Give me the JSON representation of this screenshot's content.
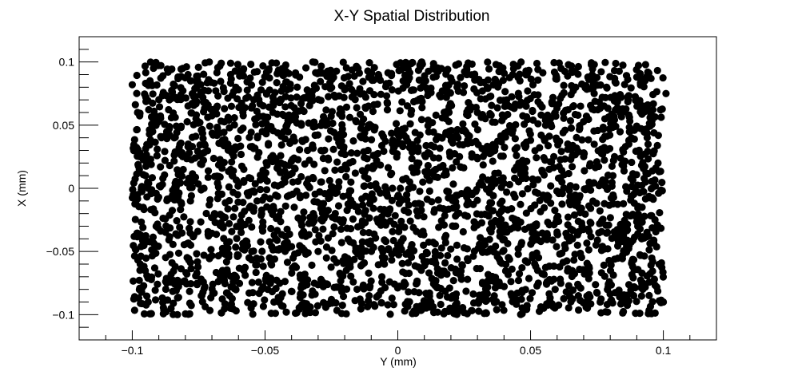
{
  "chart_data": {
    "type": "scatter",
    "title": "X-Y Spatial Distribution",
    "xlabel": "Y (mm)",
    "ylabel": "X (mm)",
    "xlim": [
      -0.12,
      0.12
    ],
    "ylim": [
      -0.12,
      0.12
    ],
    "x_ticks": [
      -0.1,
      -0.05,
      0,
      0.05,
      0.1
    ],
    "x_tick_labels": [
      "−0.1",
      "−0.05",
      "0",
      "0.05",
      "0.1"
    ],
    "y_ticks": [
      -0.1,
      -0.05,
      0,
      0.05,
      0.1
    ],
    "y_tick_labels": [
      "−0.1",
      "−0.05",
      "0",
      "0.05",
      "0.1"
    ],
    "grid": false,
    "legend": "none",
    "marker": "filled-circle",
    "marker_color": "#000000",
    "approx_point_count": 3000,
    "distribution": "approximately uniform over x in [-0.1, 0.1] and y in [-0.1, 0.1]",
    "series": [
      {
        "values": [
          [
            -0.1,
            0.082
          ],
          [
            -0.098,
            0.06
          ],
          [
            -0.097,
            -0.06
          ],
          [
            -0.095,
            0.01
          ],
          [
            -0.094,
            -0.09
          ],
          [
            -0.092,
            0.095
          ],
          [
            -0.091,
            -0.03
          ],
          [
            -0.089,
            0.04
          ],
          [
            -0.087,
            -0.075
          ],
          [
            -0.086,
            0.07
          ],
          [
            -0.084,
            -0.005
          ],
          [
            -0.083,
            -0.1
          ],
          [
            -0.081,
            0.025
          ],
          [
            -0.079,
            0.09
          ],
          [
            -0.078,
            -0.045
          ],
          [
            -0.076,
            0.055
          ],
          [
            -0.074,
            -0.085
          ],
          [
            -0.073,
            0.0
          ],
          [
            -0.071,
            0.1
          ],
          [
            -0.069,
            -0.02
          ],
          [
            -0.068,
            0.065
          ],
          [
            -0.066,
            -0.065
          ],
          [
            -0.064,
            0.035
          ],
          [
            -0.063,
            -0.095
          ],
          [
            -0.061,
            0.08
          ],
          [
            -0.059,
            -0.035
          ],
          [
            -0.058,
            0.015
          ],
          [
            -0.056,
            -0.055
          ],
          [
            -0.054,
            0.092
          ],
          [
            -0.053,
            -0.01
          ],
          [
            -0.051,
            0.045
          ],
          [
            -0.049,
            -0.08
          ],
          [
            -0.047,
            0.072
          ],
          [
            -0.046,
            -0.04
          ],
          [
            -0.044,
            0.02
          ],
          [
            -0.042,
            -0.098
          ],
          [
            -0.041,
            0.058
          ],
          [
            -0.039,
            -0.015
          ],
          [
            -0.037,
            0.088
          ],
          [
            -0.035,
            -0.068
          ],
          [
            -0.034,
            0.03
          ],
          [
            -0.032,
            0.1
          ],
          [
            -0.03,
            -0.05
          ],
          [
            -0.029,
            0.005
          ],
          [
            -0.027,
            0.062
          ],
          [
            -0.025,
            -0.088
          ],
          [
            -0.023,
            0.04
          ],
          [
            -0.022,
            -0.025
          ],
          [
            -0.02,
            0.078
          ],
          [
            -0.018,
            -0.06
          ],
          [
            -0.016,
            0.012
          ],
          [
            -0.015,
            0.095
          ],
          [
            -0.013,
            -0.035
          ],
          [
            -0.011,
            0.05
          ],
          [
            -0.009,
            -0.092
          ],
          [
            -0.008,
            0.022
          ],
          [
            -0.006,
            -0.07
          ],
          [
            -0.004,
            0.068
          ],
          [
            -0.002,
            0.0
          ],
          [
            0.0,
            -0.045
          ],
          [
            0.002,
            0.085
          ],
          [
            0.004,
            -0.082
          ],
          [
            0.006,
            0.03
          ],
          [
            0.008,
            -0.012
          ],
          [
            0.009,
            0.1
          ],
          [
            0.011,
            -0.058
          ],
          [
            0.013,
            0.052
          ],
          [
            0.015,
            -0.098
          ],
          [
            0.017,
            0.018
          ],
          [
            0.019,
            0.075
          ],
          [
            0.021,
            -0.03
          ],
          [
            0.022,
            0.042
          ],
          [
            0.024,
            -0.072
          ],
          [
            0.026,
            0.09
          ],
          [
            0.028,
            -0.005
          ],
          [
            0.03,
            0.06
          ],
          [
            0.032,
            -0.088
          ],
          [
            0.033,
            0.028
          ],
          [
            0.035,
            -0.048
          ],
          [
            0.037,
            0.098
          ],
          [
            0.039,
            -0.018
          ],
          [
            0.041,
            0.07
          ],
          [
            0.043,
            -0.064
          ],
          [
            0.044,
            0.008
          ],
          [
            0.046,
            0.085
          ],
          [
            0.048,
            -0.095
          ],
          [
            0.05,
            0.038
          ],
          [
            0.052,
            -0.038
          ],
          [
            0.054,
            0.058
          ],
          [
            0.056,
            -0.075
          ],
          [
            0.057,
            0.015
          ],
          [
            0.059,
            0.092
          ],
          [
            0.061,
            -0.052
          ],
          [
            0.063,
            0.046
          ],
          [
            0.065,
            -0.01
          ],
          [
            0.067,
            0.08
          ],
          [
            0.068,
            -0.085
          ],
          [
            0.07,
            0.025
          ],
          [
            0.072,
            -0.062
          ],
          [
            0.074,
            0.098
          ],
          [
            0.076,
            -0.028
          ],
          [
            0.078,
            0.055
          ],
          [
            0.079,
            -0.098
          ],
          [
            0.081,
            0.01
          ],
          [
            0.083,
            0.072
          ],
          [
            0.085,
            -0.042
          ],
          [
            0.087,
            0.035
          ],
          [
            0.089,
            -0.078
          ],
          [
            0.09,
            0.088
          ],
          [
            0.092,
            -0.015
          ],
          [
            0.094,
            0.062
          ],
          [
            0.096,
            -0.058
          ],
          [
            0.098,
            0.02
          ],
          [
            0.1,
            -0.09
          ],
          [
            0.101,
            0.075
          ]
        ]
      }
    ]
  }
}
